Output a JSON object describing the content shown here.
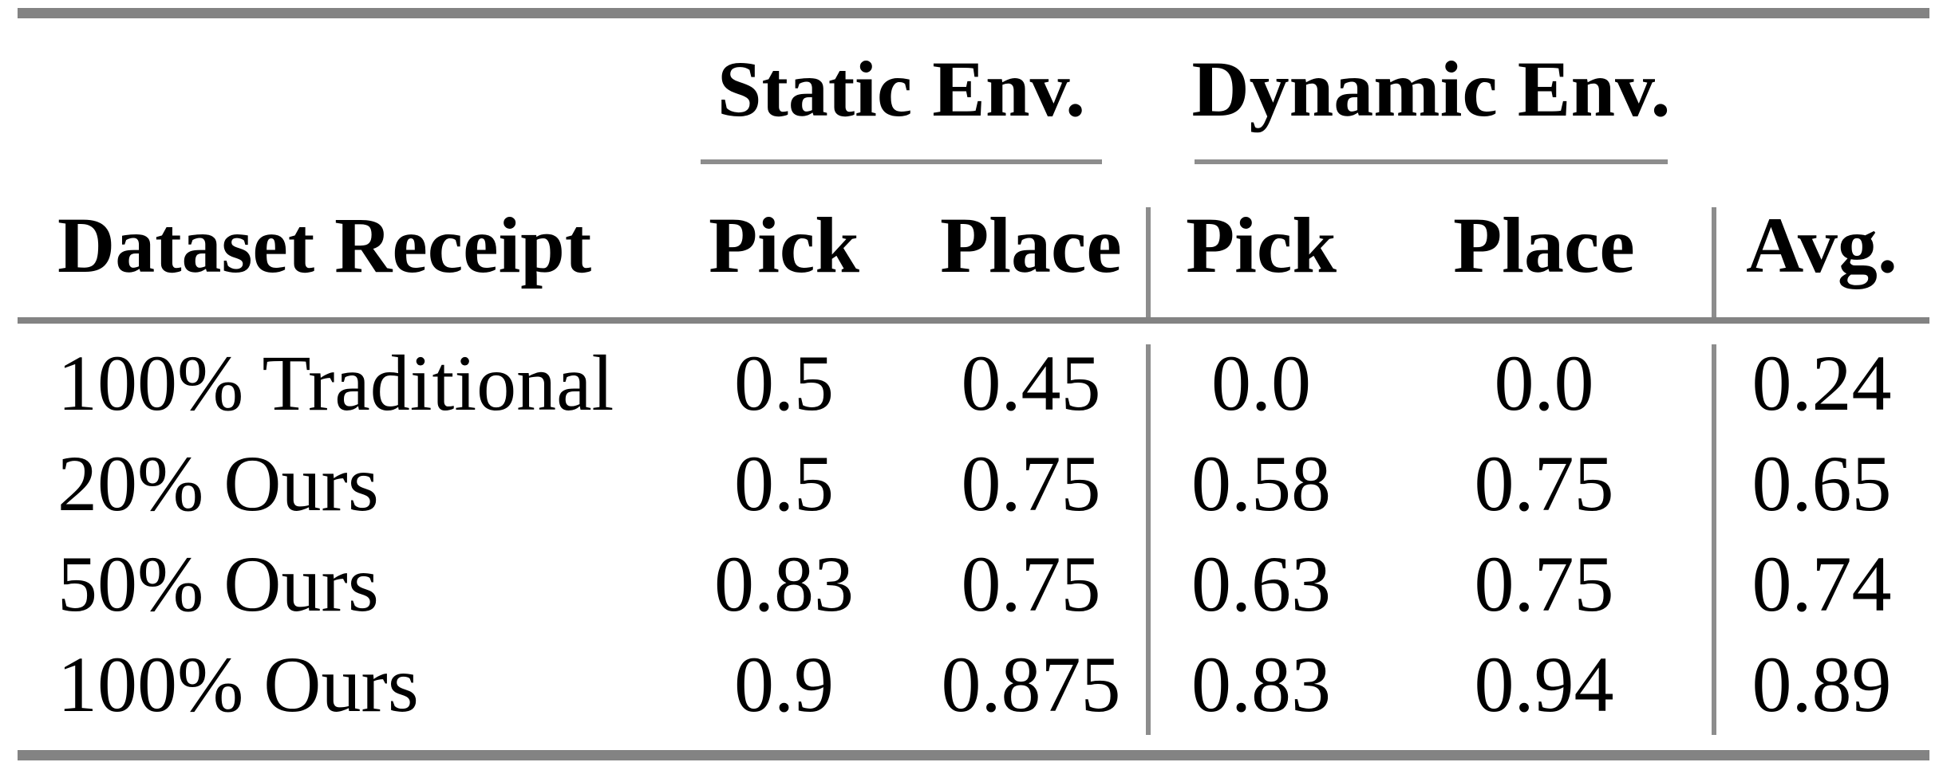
{
  "table": {
    "col_groups": [
      {
        "label": "Static Env."
      },
      {
        "label": "Dynamic Env."
      }
    ],
    "headers": {
      "row_label": "Dataset Receipt",
      "static_pick": "Pick",
      "static_place": "Place",
      "dynamic_pick": "Pick",
      "dynamic_place": "Place",
      "avg": "Avg."
    },
    "rows": [
      {
        "label": "100% Traditional",
        "static_pick": "0.5",
        "static_place": "0.45",
        "dynamic_pick": "0.0",
        "dynamic_place": "0.0",
        "avg": "0.24"
      },
      {
        "label": "20% Ours",
        "static_pick": "0.5",
        "static_place": "0.75",
        "dynamic_pick": "0.58",
        "dynamic_place": "0.75",
        "avg": "0.65"
      },
      {
        "label": "50% Ours",
        "static_pick": "0.83",
        "static_place": "0.75",
        "dynamic_pick": "0.63",
        "dynamic_place": "0.75",
        "avg": "0.74"
      },
      {
        "label": "100% Ours",
        "static_pick": "0.9",
        "static_place": "0.875",
        "dynamic_pick": "0.83",
        "dynamic_place": "0.94",
        "avg": "0.89"
      }
    ]
  },
  "colors": {
    "rule_thick": "#838383",
    "rule_thin": "#8d8d8d",
    "text": "#000000",
    "background": "#ffffff"
  }
}
